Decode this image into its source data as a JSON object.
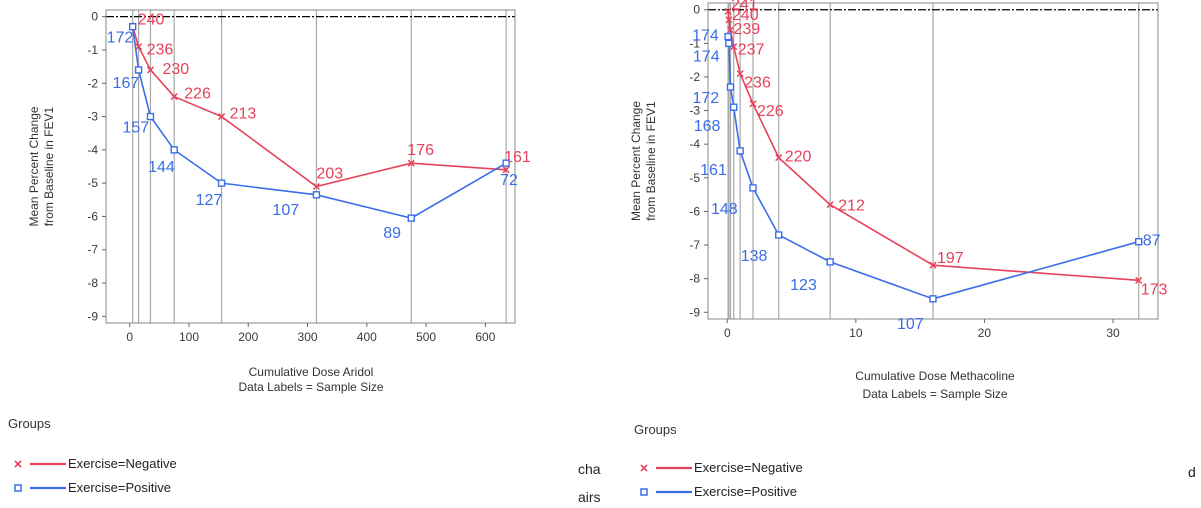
{
  "colors": {
    "negative": "#e8415a",
    "positive": "#3a6ee8",
    "zero_line": "#000000",
    "gridline": "#a8a8a8",
    "frame": "#888888"
  },
  "chart_data": [
    {
      "type": "line",
      "xlabel": "Cumulative Dose Aridol",
      "subtitle": "Data Labels = Sample Size",
      "ylabel": "Mean Percent Change\nfrom Baseline in FEV1",
      "xlim": [
        -40,
        650
      ],
      "ylim": [
        -9.2,
        0.2
      ],
      "xticks": [
        0,
        100,
        200,
        300,
        400,
        500,
        600
      ],
      "yticks": [
        0,
        -1,
        -2,
        -3,
        -4,
        -5,
        -6,
        -7,
        -8,
        -9
      ],
      "dose_gridlines": [
        5,
        15,
        35,
        75,
        155,
        315,
        475,
        635
      ],
      "series": [
        {
          "name": "Exercise=Negative",
          "marker": "x",
          "x": [
            5,
            15,
            35,
            75,
            155,
            315,
            475,
            635
          ],
          "y": [
            -0.3,
            -0.9,
            -1.6,
            -2.4,
            -3.0,
            -5.1,
            -4.4,
            -4.6
          ],
          "labels": [
            "240",
            "236",
            "230",
            "226",
            "213",
            "203",
            "176",
            "161"
          ]
        },
        {
          "name": "Exercise=Positive",
          "marker": "square",
          "x": [
            5,
            15,
            35,
            75,
            155,
            315,
            475,
            635
          ],
          "y": [
            -0.3,
            -1.6,
            -3.0,
            -4.0,
            -5.0,
            -5.35,
            -6.05,
            -4.4
          ],
          "labels": [
            "172",
            "167",
            "157",
            "144",
            "127",
            "107",
            "89",
            "72"
          ]
        }
      ],
      "legend": {
        "title": "Groups",
        "entries": [
          "Exercise=Negative",
          "Exercise=Positive"
        ],
        "placement": "bottom-left"
      }
    },
    {
      "type": "line",
      "xlabel": "Cumulative Dose Methacoline",
      "subtitle": "Data Labels = Sample Size",
      "ylabel": "Mean Percent Change\nfrom Baseline in FEV1",
      "xlim": [
        -1.5,
        33.5
      ],
      "ylim": [
        -9.2,
        0.2
      ],
      "xticks": [
        0,
        10,
        20,
        30
      ],
      "yticks": [
        0,
        -1,
        -2,
        -3,
        -4,
        -5,
        -6,
        -7,
        -8,
        -9
      ],
      "dose_gridlines": [
        0.0625,
        0.125,
        0.25,
        0.5,
        1,
        2,
        4,
        8,
        16,
        32
      ],
      "series": [
        {
          "name": "Exercise=Negative",
          "marker": "x",
          "x": [
            0.0625,
            0.125,
            0.25,
            0.5,
            1,
            2,
            4,
            8,
            16,
            32
          ],
          "y": [
            -0.05,
            -0.3,
            -0.6,
            -1.1,
            -1.9,
            -2.8,
            -4.4,
            -5.8,
            -7.6,
            -8.05
          ],
          "labels": [
            "241",
            "240",
            "239",
            "237",
            "236",
            "226",
            "220",
            "212",
            "197",
            "173"
          ]
        },
        {
          "name": "Exercise=Positive",
          "marker": "square",
          "x": [
            0.0625,
            0.125,
            0.25,
            0.5,
            1,
            2,
            4,
            8,
            16,
            32
          ],
          "y": [
            -0.8,
            -1.0,
            -2.3,
            -2.9,
            -4.2,
            -5.3,
            -6.7,
            -7.5,
            -8.6,
            -6.9
          ],
          "labels": [
            "174",
            "174",
            "172",
            "168",
            "161",
            "148",
            "138",
            "123",
            "107",
            "87"
          ]
        }
      ],
      "legend": {
        "title": "Groups",
        "entries": [
          "Exercise=Negative",
          "Exercise=Positive"
        ],
        "placement": "bottom-left"
      }
    }
  ],
  "background_text": [
    "cha",
    "airs",
    "d"
  ]
}
